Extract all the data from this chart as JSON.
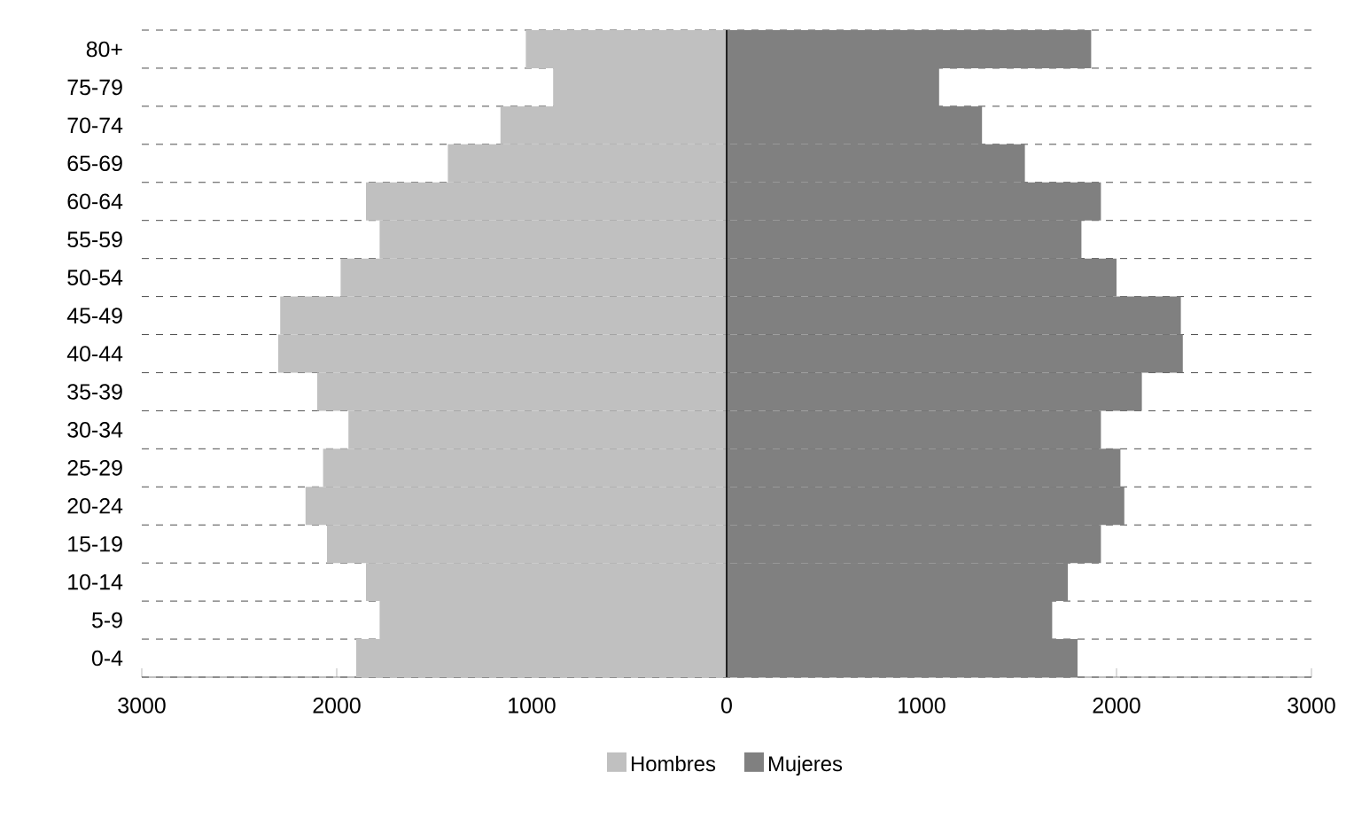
{
  "chart_data": {
    "type": "bar",
    "orientation": "horizontal",
    "categories": [
      "80+",
      "75-79",
      "70-74",
      "65-69",
      "60-64",
      "55-59",
      "50-54",
      "45-49",
      "40-44",
      "35-39",
      "30-34",
      "25-29",
      "20-24",
      "15-19",
      "10-14",
      "5-9",
      "0-4"
    ],
    "series": [
      {
        "name": "Hombres",
        "color": "#c0c0c0",
        "values": [
          -1030,
          -890,
          -1160,
          -1430,
          -1850,
          -1780,
          -1980,
          -2290,
          -2300,
          -2100,
          -1940,
          -2070,
          -2160,
          -2050,
          -1850,
          -1780,
          -1900
        ]
      },
      {
        "name": "Mujeres",
        "color": "#808080",
        "values": [
          1870,
          1090,
          1310,
          1530,
          1920,
          1820,
          2000,
          2330,
          2340,
          2130,
          1920,
          2020,
          2040,
          1920,
          1750,
          1670,
          1800
        ]
      }
    ],
    "xlim": [
      -3000,
      3000
    ],
    "xticks": [
      {
        "value": -3000,
        "label": "3000"
      },
      {
        "value": -2000,
        "label": "2000"
      },
      {
        "value": -1000,
        "label": "1000"
      },
      0,
      1000,
      2000,
      3000
    ],
    "stacked": true,
    "grid": "y",
    "legend": "bottom"
  }
}
